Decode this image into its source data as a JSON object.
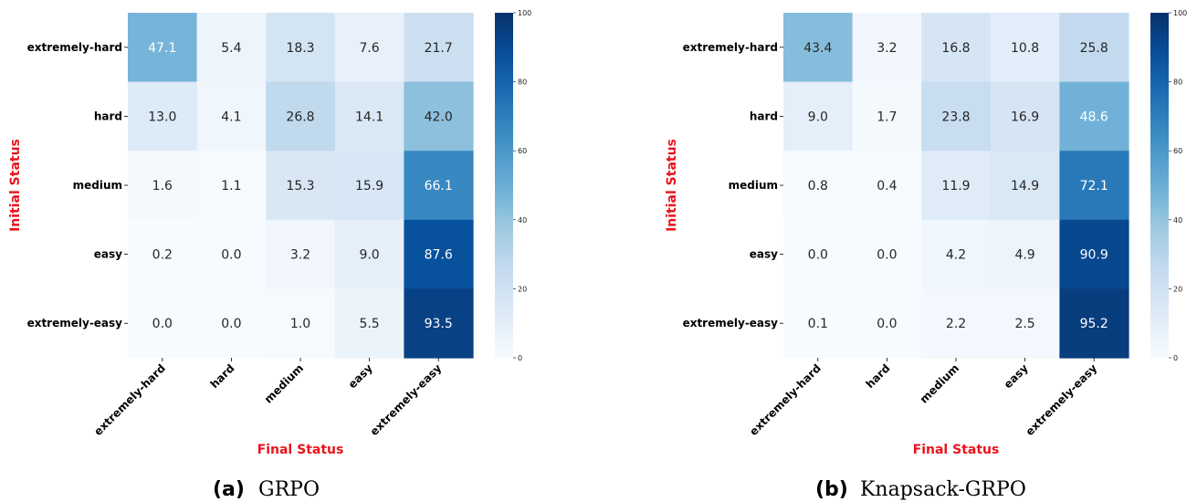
{
  "chart_data": [
    {
      "type": "heatmap",
      "caption_letter": "(a)",
      "caption_name": "GRPO",
      "xlabel": "Final Status",
      "ylabel": "Initial Status",
      "row_labels": [
        "extremely-hard",
        "hard",
        "medium",
        "easy",
        "extremely-easy"
      ],
      "col_labels": [
        "extremely-hard",
        "hard",
        "medium",
        "easy",
        "extremely-easy"
      ],
      "values": [
        [
          47.1,
          5.4,
          18.3,
          7.6,
          21.7
        ],
        [
          13.0,
          4.1,
          26.8,
          14.1,
          42.0
        ],
        [
          1.6,
          1.1,
          15.3,
          15.9,
          66.1
        ],
        [
          0.2,
          0.0,
          3.2,
          9.0,
          87.6
        ],
        [
          0.0,
          0.0,
          1.0,
          5.5,
          93.5
        ]
      ],
      "colorbar": {
        "range": [
          0,
          100
        ],
        "ticks": [
          "0",
          "20",
          "40",
          "60",
          "80",
          "100"
        ],
        "colormap": "Blues"
      }
    },
    {
      "type": "heatmap",
      "caption_letter": "(b)",
      "caption_name": "Knapsack-GRPO",
      "xlabel": "Final Status",
      "ylabel": "Initial Status",
      "row_labels": [
        "extremely-hard",
        "hard",
        "medium",
        "easy",
        "extremely-easy"
      ],
      "col_labels": [
        "extremely-hard",
        "hard",
        "medium",
        "easy",
        "extremely-easy"
      ],
      "values": [
        [
          43.4,
          3.2,
          16.8,
          10.8,
          25.8
        ],
        [
          9.0,
          1.7,
          23.8,
          16.9,
          48.6
        ],
        [
          0.8,
          0.4,
          11.9,
          14.9,
          72.1
        ],
        [
          0.0,
          0.0,
          4.2,
          4.9,
          90.9
        ],
        [
          0.1,
          0.0,
          2.2,
          2.5,
          95.2
        ]
      ],
      "colorbar": {
        "range": [
          0,
          100
        ],
        "ticks": [
          "0",
          "20",
          "40",
          "60",
          "80",
          "100"
        ],
        "colormap": "Blues"
      }
    }
  ],
  "colors": {
    "axis_label": "#e8141c",
    "text_dark": "#262626",
    "text_light": "#ffffff"
  }
}
